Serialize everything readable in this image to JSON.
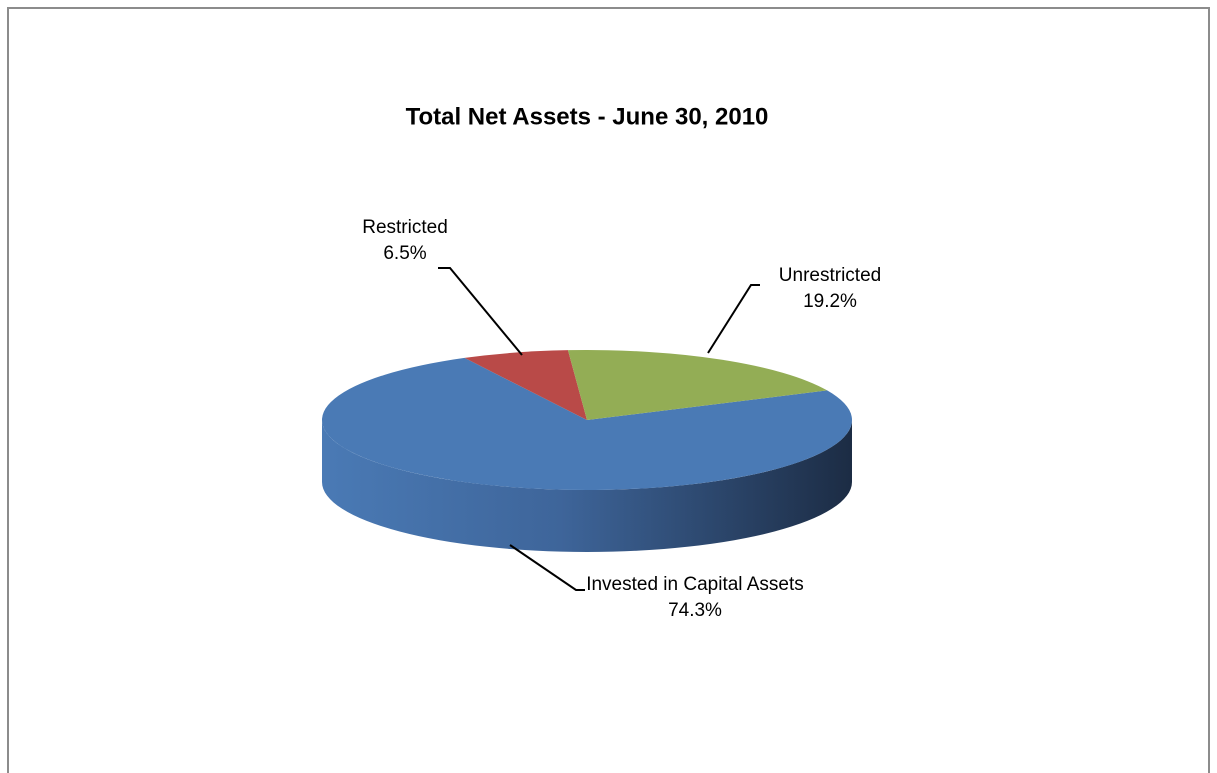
{
  "chart_data": {
    "type": "pie",
    "title": "Total Net Assets - June 30, 2010",
    "categories": [
      "Invested in Capital Assets",
      "Restricted",
      "Unrestricted"
    ],
    "values": [
      74.3,
      6.5,
      19.2
    ],
    "value_labels": [
      "74.3%",
      "6.5%",
      "19.2%"
    ],
    "colors": [
      "#4a7ab5",
      "#b94a48",
      "#93ad55"
    ]
  }
}
